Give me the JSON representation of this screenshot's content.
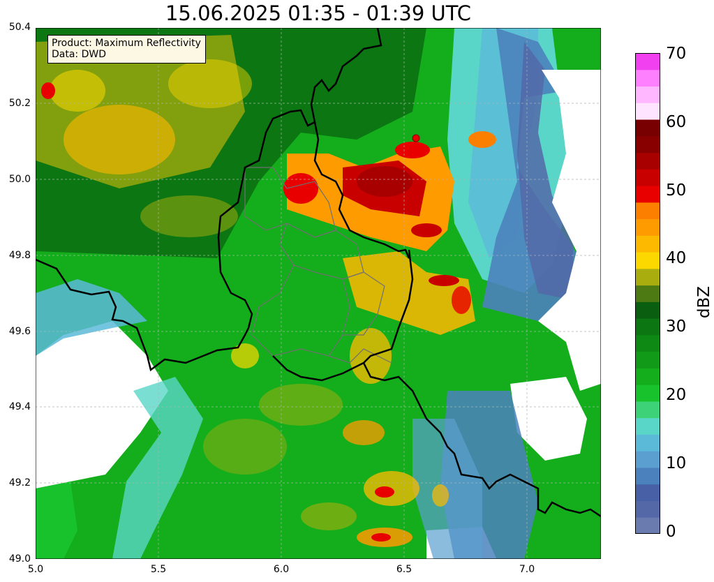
{
  "title": "15.06.2025 01:35 - 01:39 UTC",
  "info": {
    "product": "Product: Maximum Reflectivity",
    "source": "Data: DWD"
  },
  "axes": {
    "lon_range": [
      5.0,
      7.3
    ],
    "lat_range": [
      49.0,
      50.4
    ],
    "x_ticks": [
      "5.0",
      "5.5",
      "6.0",
      "6.5",
      "7.0"
    ],
    "y_ticks": [
      "50.4",
      "50.2",
      "50.0",
      "49.8",
      "49.6",
      "49.4",
      "49.2",
      "49.0"
    ],
    "grid": true
  },
  "colorbar": {
    "label": "dBZ",
    "ticks": [
      "70",
      "60",
      "50",
      "40",
      "30",
      "20",
      "10",
      "0"
    ],
    "range": [
      0,
      70
    ],
    "colors": [
      "#6a7bb0",
      "#5468a8",
      "#4760a6",
      "#4b82bd",
      "#5a9fcf",
      "#5bbad8",
      "#5ad6c8",
      "#3dd178",
      "#18c22c",
      "#14ae1c",
      "#109a18",
      "#0e8a14",
      "#0c7612",
      "#0a5e0f",
      "#4e7a14",
      "#a9ae0e",
      "#fcd800",
      "#fdb900",
      "#fd9b00",
      "#fd7f00",
      "#e80000",
      "#c80000",
      "#a80000",
      "#880000",
      "#780000",
      "#ffe4ff",
      "#ffb8ff",
      "#ff80ff",
      "#f040f0"
    ]
  },
  "map_colors": {
    "background": "#10b020",
    "border": "#000000",
    "inner_boundary": "#707070",
    "no_data": "#ffffff"
  }
}
